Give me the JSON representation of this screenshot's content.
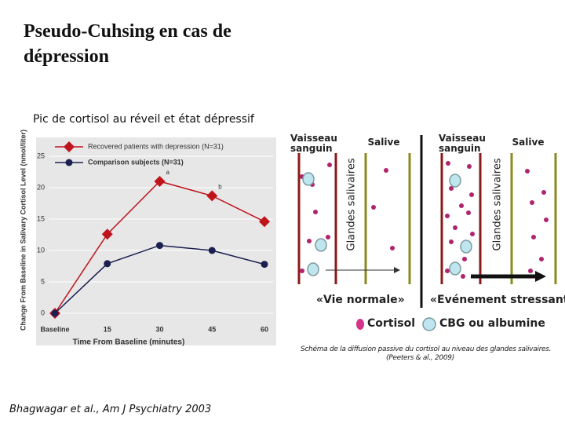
{
  "slide": {
    "title": "Pseudo-Cuhsing en cas de dépression",
    "citation": "Bhagwagar et al., Am J Psychiatry 2003"
  },
  "chart_data": {
    "type": "line",
    "title": "Pic de cortisol au réveil et état dépressif",
    "x_label": "Time From Baseline (minutes)",
    "y_label": "Change From Baseline in Salivary Cortisol Level (nmol/liter)",
    "categories": [
      "Baseline",
      "15",
      "30",
      "45",
      "60"
    ],
    "series": [
      {
        "name": "Recovered patients with depression (N=31)",
        "color": "#c0141c",
        "marker": "diamond",
        "values": [
          0,
          12.6,
          21,
          18.7,
          14.6
        ]
      },
      {
        "name": "Comparison subjects (N=31)",
        "color": "#1b2050",
        "marker": "circle",
        "values": [
          0,
          7.9,
          10.8,
          10,
          7.8
        ]
      }
    ],
    "annotations": [
      "a",
      "b"
    ],
    "ylim": [
      -1.5,
      28
    ],
    "yticks": [
      0,
      5,
      10,
      15,
      20,
      25
    ],
    "grid": true,
    "legend": "top-left"
  },
  "diagram": {
    "vessel": "Vaisseau sanguin",
    "saliva": "Salive",
    "glands": "Glandes salivaires",
    "normal": "«Vie normale»",
    "stress": "«Evénement stressant»",
    "legend_cortisol": "Cortisol",
    "legend_cbg": "CBG ou albumine",
    "caption": "Schéma de la diffusion passive du cortisol au niveau des glandes salivaires.",
    "caption_source": "(Peeters & al., 2009)"
  }
}
